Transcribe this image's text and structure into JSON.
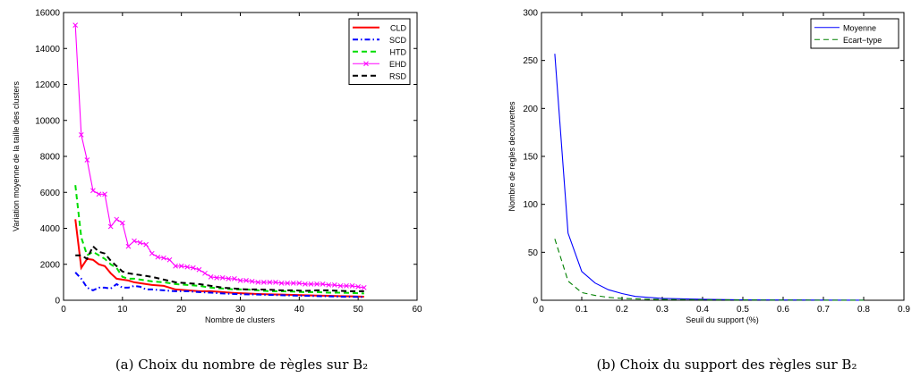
{
  "chart_data": [
    {
      "type": "line",
      "xlabel": "Nombre de clusters",
      "ylabel": "Variation moyenne de la taille des clusters",
      "xlim": [
        0,
        60
      ],
      "ylim": [
        0,
        16000
      ],
      "xticks": [
        "0",
        "10",
        "20",
        "30",
        "40",
        "50",
        "60"
      ],
      "yticks": [
        "0",
        "2000",
        "4000",
        "6000",
        "8000",
        "10000",
        "12000",
        "14000",
        "16000"
      ],
      "legend_position": "top-right",
      "grid": false,
      "caption": "(a) Choix du nombre de règles sur B₂",
      "series": [
        {
          "name": "CLD",
          "color": "#ff0000",
          "style": "solid",
          "marker": "",
          "x": [
            2,
            3,
            4,
            5,
            6,
            7,
            8,
            9,
            10,
            11,
            12,
            13,
            14,
            15,
            17,
            19,
            21,
            23,
            25,
            27,
            29,
            31,
            33,
            35,
            37,
            39,
            41,
            43,
            45,
            47,
            49,
            51
          ],
          "y": [
            4500,
            1800,
            2300,
            2250,
            2000,
            1900,
            1500,
            1200,
            1150,
            1100,
            1000,
            950,
            900,
            850,
            800,
            600,
            550,
            500,
            500,
            450,
            400,
            380,
            350,
            330,
            320,
            300,
            280,
            260,
            250,
            230,
            220,
            200
          ]
        },
        {
          "name": "SCD",
          "color": "#0000ff",
          "style": "dashdot",
          "marker": "",
          "x": [
            2,
            3,
            4,
            5,
            6,
            7,
            8,
            9,
            10,
            11,
            12,
            13,
            14,
            15,
            17,
            19,
            21,
            23,
            25,
            27,
            29,
            31,
            33,
            35,
            37,
            39,
            41,
            43,
            45,
            47,
            49,
            51
          ],
          "y": [
            1550,
            1200,
            700,
            550,
            700,
            700,
            650,
            900,
            700,
            700,
            800,
            750,
            600,
            600,
            550,
            500,
            500,
            450,
            420,
            380,
            350,
            330,
            320,
            300,
            280,
            260,
            250,
            230,
            220,
            200,
            190,
            180
          ]
        },
        {
          "name": "HTD",
          "color": "#00dd00",
          "style": "dashed",
          "marker": "",
          "x": [
            2,
            3,
            4,
            5,
            6,
            7,
            8,
            9,
            10,
            11,
            12,
            13,
            14,
            15,
            17,
            19,
            21,
            23,
            25,
            27,
            29,
            31,
            33,
            35,
            37,
            39,
            41,
            43,
            45,
            47,
            49,
            51
          ],
          "y": [
            6400,
            3500,
            2500,
            2700,
            2500,
            2300,
            2000,
            1800,
            1300,
            1200,
            1200,
            1150,
            1100,
            1050,
            1000,
            900,
            850,
            800,
            700,
            650,
            600,
            600,
            550,
            500,
            500,
            480,
            450,
            450,
            420,
            420,
            400,
            380
          ]
        },
        {
          "name": "EHD",
          "color": "#ff00ff",
          "style": "solid",
          "marker": "x",
          "x": [
            2,
            3,
            4,
            5,
            6,
            7,
            8,
            9,
            10,
            11,
            12,
            13,
            14,
            15,
            16,
            17,
            18,
            19,
            20,
            21,
            22,
            23,
            24,
            25,
            26,
            27,
            28,
            29,
            30,
            31,
            32,
            33,
            34,
            35,
            36,
            37,
            38,
            39,
            40,
            41,
            42,
            43,
            44,
            45,
            46,
            47,
            48,
            49,
            50,
            51
          ],
          "y": [
            15300,
            9200,
            7800,
            6100,
            5900,
            5900,
            4100,
            4500,
            4300,
            3000,
            3300,
            3200,
            3100,
            2600,
            2400,
            2350,
            2250,
            1900,
            1900,
            1850,
            1800,
            1700,
            1500,
            1300,
            1250,
            1250,
            1200,
            1200,
            1100,
            1100,
            1050,
            1000,
            1000,
            1000,
            1000,
            950,
            950,
            950,
            950,
            900,
            900,
            900,
            900,
            850,
            850,
            800,
            800,
            800,
            750,
            700
          ]
        },
        {
          "name": "RSD",
          "color": "#000000",
          "style": "dashed",
          "marker": "",
          "x": [
            2,
            3,
            4,
            5,
            6,
            7,
            8,
            9,
            10,
            11,
            12,
            13,
            14,
            15,
            17,
            19,
            21,
            23,
            25,
            27,
            29,
            31,
            33,
            35,
            37,
            39,
            41,
            43,
            45,
            47,
            49,
            51
          ],
          "y": [
            2500,
            2500,
            2300,
            3000,
            2700,
            2600,
            2200,
            1900,
            1600,
            1500,
            1450,
            1400,
            1350,
            1300,
            1150,
            1000,
            950,
            900,
            800,
            700,
            650,
            600,
            600,
            580,
            550,
            550,
            520,
            550,
            550,
            520,
            500,
            500
          ]
        }
      ]
    },
    {
      "type": "line",
      "xlabel": "Seuil du support (%)",
      "ylabel": "Nombre de regles decouvertes",
      "xlim": [
        0,
        0.9
      ],
      "ylim": [
        0,
        300
      ],
      "xticks": [
        "0",
        "0.1",
        "0.2",
        "0.3",
        "0.4",
        "0.5",
        "0.6",
        "0.7",
        "0.8",
        "0.9"
      ],
      "yticks": [
        "0",
        "50",
        "100",
        "150",
        "200",
        "250",
        "300"
      ],
      "legend_position": "top-right",
      "grid": false,
      "caption": "(b) Choix du support des règles sur B₂",
      "series": [
        {
          "name": "Moyenne",
          "color": "#0000ff",
          "style": "solid",
          "marker": "",
          "x": [
            0.033,
            0.066,
            0.1,
            0.133,
            0.166,
            0.2,
            0.233,
            0.266,
            0.3,
            0.4,
            0.5,
            0.6,
            0.7,
            0.8
          ],
          "y": [
            257,
            70,
            30,
            18,
            11,
            7,
            4,
            3,
            2,
            1,
            0.5,
            0.3,
            0.2,
            0.1
          ]
        },
        {
          "name": "Ecart−type",
          "color": "#008000",
          "style": "dashed",
          "marker": "",
          "x": [
            0.033,
            0.066,
            0.1,
            0.133,
            0.166,
            0.2,
            0.233,
            0.266,
            0.3,
            0.4,
            0.5,
            0.6,
            0.7,
            0.8
          ],
          "y": [
            64,
            20,
            8,
            5,
            3,
            2,
            1.5,
            1,
            0.8,
            0.5,
            0.3,
            0.2,
            0.1,
            0.1
          ]
        }
      ]
    }
  ]
}
